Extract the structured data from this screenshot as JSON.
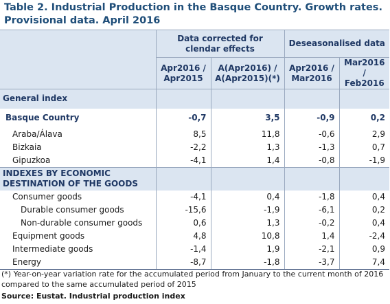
{
  "title": "Table 2. Industrial Production in the Basque Country. Growth rates. Provisional data. April 2016",
  "header": {
    "group1": "Data corrected for clendar effects",
    "group2": "Deseasonalised data",
    "col1": "Apr2016 / Apr2015",
    "col2": "A(Apr2016) / A(Apr2015)(*)",
    "col3": "Apr2016 / Mar2016",
    "col4": "Mar2016 / Feb2016"
  },
  "rows": [
    {
      "label": "General index",
      "v": [
        "",
        "",
        "",
        ""
      ]
    },
    {
      "label": "Basque Country",
      "v": [
        "-0,7",
        "3,5",
        "-0,9",
        "0,2"
      ]
    },
    {
      "label": "Araba/Álava",
      "v": [
        "8,5",
        "11,8",
        "-0,6",
        "2,9"
      ]
    },
    {
      "label": "Bizkaia",
      "v": [
        "-2,2",
        "1,3",
        "-1,3",
        "0,7"
      ]
    },
    {
      "label": "Gipuzkoa",
      "v": [
        "-4,1",
        "1,4",
        "-0,8",
        "-1,9"
      ]
    },
    {
      "label": "INDEXES BY ECONOMIC",
      "label2": "DESTINATION OF THE GOODS",
      "v": [
        "",
        "",
        "",
        ""
      ]
    },
    {
      "label": "Consumer goods",
      "v": [
        "-4,1",
        "0,4",
        "-1,8",
        "0,4"
      ]
    },
    {
      "label": "Durable consumer goods",
      "v": [
        "-15,6",
        "-1,9",
        "-6,1",
        "0,2"
      ]
    },
    {
      "label": "Non-durable consumer goods",
      "v": [
        "0,6",
        "1,3",
        "-0,2",
        "0,4"
      ]
    },
    {
      "label": "Equipment goods",
      "v": [
        "4,8",
        "10,8",
        "1,4",
        "-2,4"
      ]
    },
    {
      "label": "Intermediate goods",
      "v": [
        "-1,4",
        "1,9",
        "-2,1",
        "0,9"
      ]
    },
    {
      "label": "Energy",
      "v": [
        "-8,7",
        "-1,8",
        "-3,7",
        "7,4"
      ]
    }
  ],
  "footnote": "(*) Year-on-year variation rate for the accumulated period from January to the current month of 2016 compared to the same accumulated period of 2015",
  "source": "Source: Eustat. Industrial production index"
}
